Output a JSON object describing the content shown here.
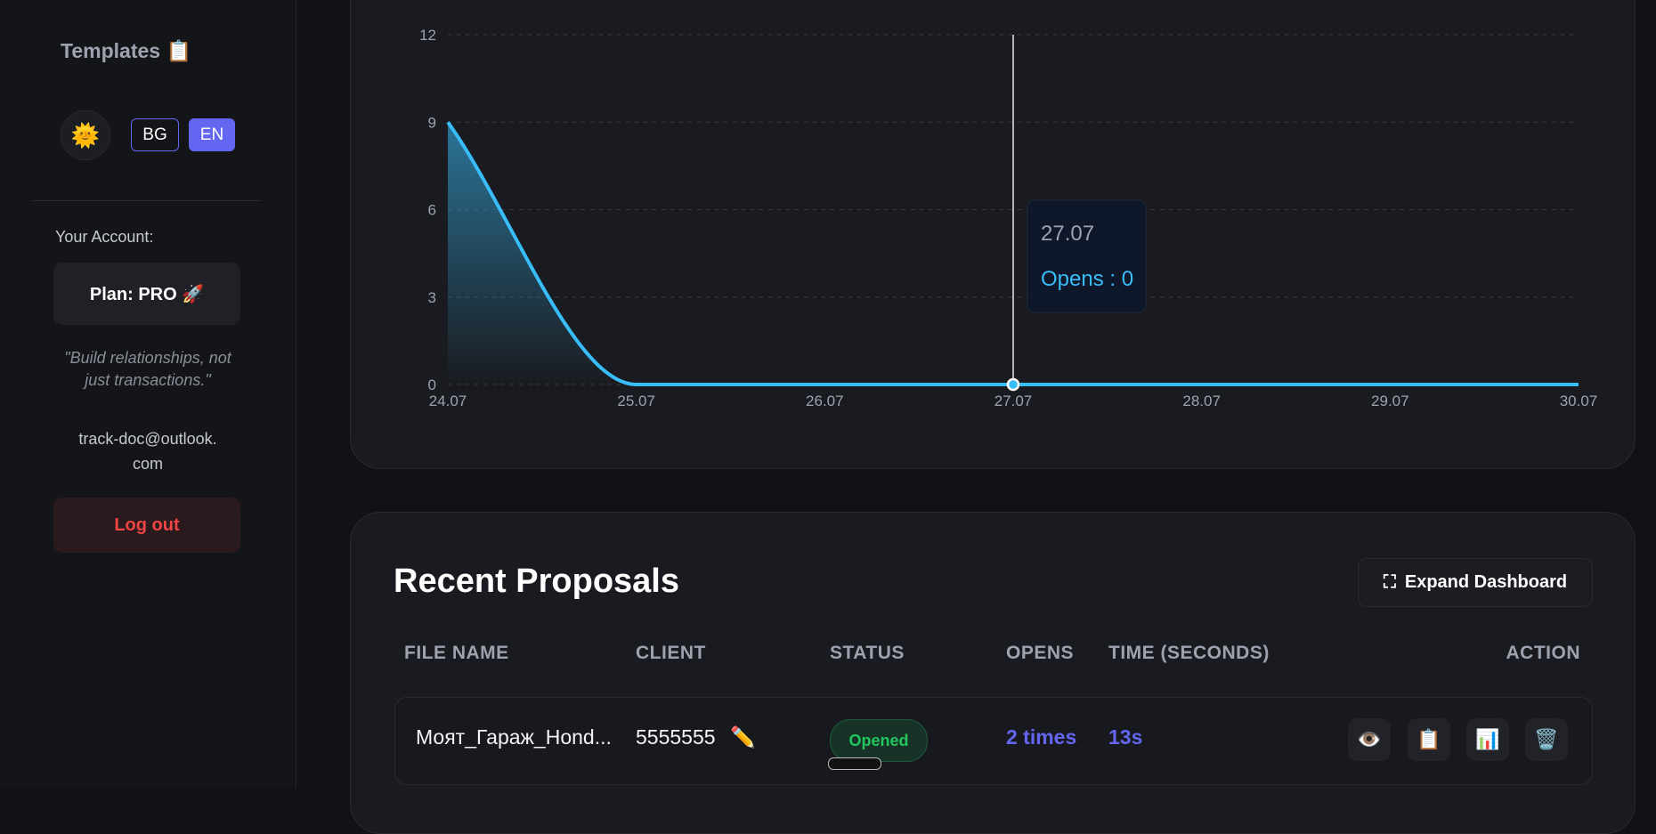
{
  "sidebar": {
    "title": "Templates 📋",
    "languages": [
      "BG",
      "EN"
    ],
    "account_label": "Your Account:",
    "plan": "Plan: PRO 🚀",
    "quote": "\"Build relationships, not just transactions.\"",
    "email": "track-doc@outlook.com",
    "logout": "Log out"
  },
  "chart_data": {
    "type": "line",
    "categories": [
      "24.07",
      "25.07",
      "26.07",
      "27.07",
      "28.07",
      "29.07",
      "30.07"
    ],
    "series": [
      {
        "name": "Opens",
        "color": "#38bdf8",
        "values": [
          9,
          0,
          0,
          0,
          0,
          0,
          0
        ]
      }
    ],
    "ylim": [
      0,
      12
    ],
    "yticks": [
      0,
      3,
      6,
      9,
      12
    ],
    "grid": true,
    "tooltip_text": "Opens : 0"
  },
  "table": {
    "title": "Recent Proposals",
    "expand": "Expand Dashboard",
    "headers": [
      "FILE NAME",
      "CLIENT",
      "STATUS",
      "OPENS",
      "TIME (SECONDS)",
      "ACTION"
    ],
    "rows": [
      [
        "Моят_Гараж_Hond...",
        "5555555",
        "Opened",
        "2 times",
        "13s"
      ]
    ]
  }
}
